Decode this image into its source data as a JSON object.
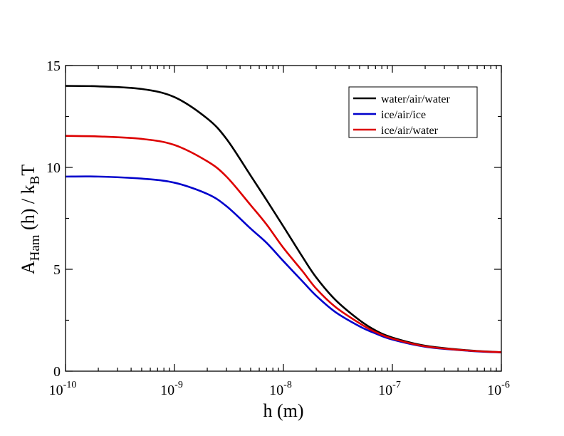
{
  "chart_data": {
    "type": "line",
    "title": "",
    "xlabel": "h (m)",
    "ylabel": {
      "main": "A",
      "main_sub": "Ham",
      "middle": " (h) / k",
      "k_sub": "B",
      "end": "T"
    },
    "xscale": "log",
    "xlim": [
      1e-10,
      1e-06
    ],
    "ylim": [
      0,
      15
    ],
    "x_ticks": [
      {
        "value": 1e-10,
        "base": "10",
        "exp": "-10"
      },
      {
        "value": 1e-09,
        "base": "10",
        "exp": "-9"
      },
      {
        "value": 1e-08,
        "base": "10",
        "exp": "-8"
      },
      {
        "value": 1e-07,
        "base": "10",
        "exp": "-7"
      },
      {
        "value": 1e-06,
        "base": "10",
        "exp": "-6"
      }
    ],
    "y_ticks": [
      {
        "value": 0,
        "label": "0"
      },
      {
        "value": 5,
        "label": "5"
      },
      {
        "value": 10,
        "label": "10"
      },
      {
        "value": 15,
        "label": "15"
      }
    ],
    "grid": false,
    "legend_position": "top-right",
    "x": [
      1e-10,
      2e-10,
      5e-10,
      1e-09,
      2e-09,
      3e-09,
      5e-09,
      7e-09,
      1e-08,
      1.5e-08,
      2e-08,
      3e-08,
      5e-08,
      7e-08,
      1e-07,
      2e-07,
      5e-07,
      1e-06
    ],
    "series": [
      {
        "name": "water/air/water",
        "color": "#000000",
        "values": [
          14.0,
          13.98,
          13.85,
          13.45,
          12.4,
          11.4,
          9.6,
          8.4,
          7.1,
          5.6,
          4.6,
          3.5,
          2.5,
          2.0,
          1.65,
          1.25,
          1.02,
          0.93
        ]
      },
      {
        "name": "ice/air/ice",
        "color": "#0000cc",
        "values": [
          9.55,
          9.55,
          9.45,
          9.25,
          8.7,
          8.1,
          7.0,
          6.3,
          5.4,
          4.4,
          3.7,
          2.9,
          2.2,
          1.85,
          1.55,
          1.2,
          1.0,
          0.92
        ]
      },
      {
        "name": "ice/air/water",
        "color": "#dd0000",
        "values": [
          11.55,
          11.52,
          11.4,
          11.1,
          10.3,
          9.55,
          8.15,
          7.2,
          6.05,
          4.9,
          4.05,
          3.15,
          2.35,
          1.92,
          1.6,
          1.22,
          1.01,
          0.93
        ]
      }
    ]
  }
}
